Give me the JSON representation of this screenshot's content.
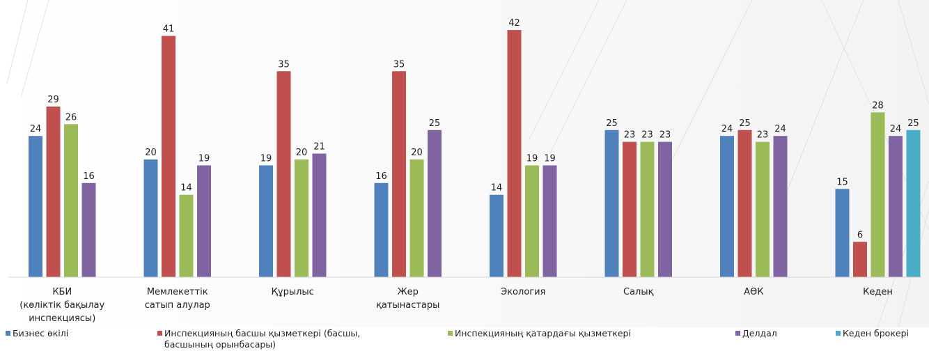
{
  "chart_data": {
    "type": "bar",
    "categories": [
      [
        "КБИ",
        "(көліктік бақылау",
        "инспекциясы)"
      ],
      [
        "Мемлекеттік",
        "сатып алулар"
      ],
      [
        "Құрылыс"
      ],
      [
        "Жер",
        "қатынастары"
      ],
      [
        "Экология"
      ],
      [
        "Салық"
      ],
      [
        "АӨК"
      ],
      [
        "Кеден"
      ]
    ],
    "series": [
      {
        "name": "Бизнес өкілі",
        "color": "#4F81BD",
        "values": [
          24,
          20,
          19,
          16,
          14,
          25,
          24,
          15
        ]
      },
      {
        "name": "Инспекцияның басшы қызметкері (басшы, басшының орынбасары)",
        "color": "#C0504D",
        "values": [
          29,
          41,
          35,
          35,
          42,
          23,
          25,
          6
        ]
      },
      {
        "name": "Инспекцияның қатардағы қызметкері",
        "color": "#9BBB59",
        "values": [
          26,
          14,
          20,
          20,
          19,
          23,
          23,
          28
        ]
      },
      {
        "name": "Делдал",
        "color": "#8064A2",
        "values": [
          16,
          19,
          21,
          25,
          19,
          23,
          24,
          24
        ]
      },
      {
        "name": "Кеден брокері",
        "color": "#4BACC6",
        "values": [
          null,
          null,
          null,
          null,
          null,
          null,
          null,
          25
        ]
      }
    ],
    "ylim": [
      0,
      45
    ],
    "grid": false,
    "legend_position": "bottom"
  },
  "legend": [
    {
      "label": "Бизнес өкілі",
      "color": "#4F81BD"
    },
    {
      "label": "Инспекцияның басшы қызметкері (басшы,",
      "label2": "басшының орынбасары)",
      "color": "#C0504D"
    },
    {
      "label": "Инспекцияның қатардағы қызметкері",
      "color": "#9BBB59"
    },
    {
      "label": "Делдал",
      "color": "#8064A2"
    },
    {
      "label": "Кеден брокері",
      "color": "#4BACC6"
    }
  ]
}
